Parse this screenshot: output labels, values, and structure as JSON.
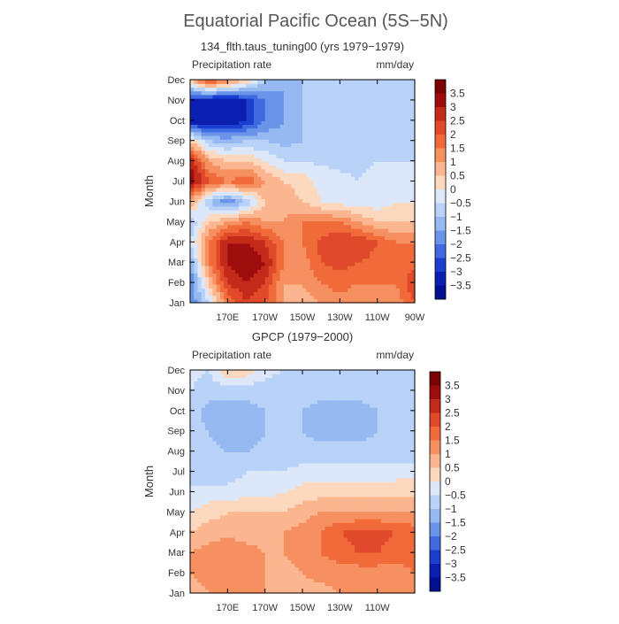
{
  "figure": {
    "title": "Equatorial Pacific Ocean (5S−5N)"
  },
  "chart_data": [
    {
      "type": "heatmap",
      "subtitle": "134_flth.taus_tuning00 (yrs 1979−1979)",
      "variable_label": "Precipitation rate",
      "units_label": "mm/day",
      "ylabel": "Month",
      "xlabel": "",
      "x_range_deg_east": [
        150,
        270
      ],
      "x_ticks": [
        {
          "lon": 170,
          "label": "170E"
        },
        {
          "lon": 190,
          "label": "170W"
        },
        {
          "lon": 210,
          "label": "150W"
        },
        {
          "lon": 230,
          "label": "130W"
        },
        {
          "lon": 250,
          "label": "110W"
        },
        {
          "lon": 270,
          "label": "90W"
        }
      ],
      "months": [
        "Jan",
        "Feb",
        "Mar",
        "Apr",
        "May",
        "Jun",
        "Jul",
        "Aug",
        "Sep",
        "Oct",
        "Nov",
        "Dec"
      ],
      "lons": [
        150,
        160,
        170,
        180,
        190,
        200,
        210,
        220,
        230,
        240,
        250,
        260,
        270
      ],
      "values": [
        [
          -2.0,
          -0.5,
          1.5,
          2.5,
          2.0,
          1.0,
          0.8,
          1.0,
          1.2,
          1.0,
          1.0,
          1.2,
          2.0
        ],
        [
          -2.0,
          0.5,
          2.5,
          3.0,
          2.5,
          1.0,
          1.0,
          1.5,
          1.8,
          1.5,
          1.5,
          1.5,
          2.5
        ],
        [
          -1.5,
          1.5,
          3.0,
          3.5,
          3.0,
          1.5,
          1.2,
          2.0,
          2.2,
          2.0,
          1.8,
          1.5,
          1.8
        ],
        [
          -0.5,
          1.5,
          3.0,
          3.0,
          2.5,
          1.5,
          1.5,
          2.2,
          2.5,
          2.5,
          2.0,
          1.5,
          1.5
        ],
        [
          -1.0,
          0.5,
          1.0,
          1.5,
          1.0,
          1.0,
          1.5,
          1.5,
          1.5,
          1.0,
          0.5,
          0.5,
          0.5
        ],
        [
          1.0,
          -1.0,
          -2.0,
          -1.0,
          0.5,
          0.8,
          0.5,
          0.0,
          -0.2,
          -0.3,
          -0.3,
          0.0,
          0.0
        ],
        [
          3.5,
          2.0,
          1.5,
          2.0,
          1.0,
          0.5,
          0.3,
          -0.2,
          -0.4,
          -0.5,
          -0.3,
          -0.2,
          0.0
        ],
        [
          3.0,
          1.0,
          0.5,
          0.5,
          0.0,
          -0.5,
          -0.5,
          -0.6,
          -0.6,
          -0.6,
          -0.5,
          -0.5,
          -0.5
        ],
        [
          0.5,
          -1.0,
          -1.2,
          -1.0,
          -1.0,
          -1.2,
          -1.0,
          -1.0,
          -0.8,
          -0.8,
          -0.8,
          -0.8,
          -0.8
        ],
        [
          -3.5,
          -3.5,
          -3.5,
          -3.0,
          -2.0,
          -1.5,
          -1.0,
          -1.0,
          -1.0,
          -0.8,
          -1.0,
          -0.8,
          -0.8
        ],
        [
          -3.0,
          -3.5,
          -3.5,
          -3.0,
          -2.0,
          -1.5,
          -1.0,
          -1.0,
          -1.0,
          -0.8,
          -0.8,
          -0.8,
          -0.8
        ],
        [
          0.5,
          2.5,
          1.5,
          0.5,
          -1.0,
          -1.5,
          -1.0,
          -1.0,
          -1.0,
          -1.0,
          -1.0,
          -0.8,
          -1.0
        ]
      ],
      "colorbar": {
        "labels": [
          "3.5",
          "3",
          "2.5",
          "2",
          "1.5",
          "1",
          "0.5",
          "0",
          "−0.5",
          "−1",
          "−1.5",
          "−2",
          "−2.5",
          "−3",
          "−3.5"
        ]
      }
    },
    {
      "type": "heatmap",
      "subtitle": "GPCP (1979−2000)",
      "variable_label": "Precipitation rate",
      "units_label": "mm/day",
      "ylabel": "Month",
      "xlabel": "",
      "x_range_deg_east": [
        150,
        270
      ],
      "x_ticks": [
        {
          "lon": 170,
          "label": "170E"
        },
        {
          "lon": 190,
          "label": "170W"
        },
        {
          "lon": 210,
          "label": "150W"
        },
        {
          "lon": 230,
          "label": "130W"
        },
        {
          "lon": 250,
          "label": "110W"
        }
      ],
      "months": [
        "Jan",
        "Feb",
        "Mar",
        "Apr",
        "May",
        "Jun",
        "Jul",
        "Aug",
        "Sep",
        "Oct",
        "Nov",
        "Dec"
      ],
      "lons": [
        150,
        160,
        170,
        180,
        190,
        200,
        210,
        220,
        230,
        240,
        250,
        260,
        270
      ],
      "values": [
        [
          0.8,
          1.0,
          1.2,
          1.2,
          1.0,
          0.8,
          0.8,
          0.8,
          1.0,
          1.0,
          1.0,
          1.0,
          1.2
        ],
        [
          1.0,
          1.2,
          1.5,
          1.2,
          1.0,
          0.8,
          1.0,
          1.2,
          1.2,
          1.2,
          1.2,
          1.2,
          1.5
        ],
        [
          1.0,
          1.2,
          1.5,
          1.2,
          1.0,
          1.0,
          1.2,
          1.5,
          1.8,
          2.0,
          2.0,
          1.8,
          1.8
        ],
        [
          0.5,
          0.8,
          0.8,
          0.8,
          0.8,
          1.0,
          1.2,
          1.5,
          2.0,
          2.2,
          2.2,
          2.0,
          1.8
        ],
        [
          0.0,
          0.3,
          0.5,
          0.5,
          0.5,
          0.5,
          0.8,
          1.0,
          1.0,
          1.0,
          1.0,
          1.0,
          1.0
        ],
        [
          -0.5,
          -0.3,
          -0.3,
          -0.2,
          -0.2,
          0.0,
          0.2,
          0.3,
          0.3,
          0.3,
          0.3,
          0.3,
          0.3
        ],
        [
          -0.5,
          -0.8,
          -0.8,
          -0.5,
          -0.5,
          -0.5,
          -0.3,
          -0.3,
          -0.3,
          -0.3,
          -0.3,
          -0.2,
          -0.2
        ],
        [
          -0.5,
          -0.8,
          -1.0,
          -1.0,
          -0.8,
          -0.8,
          -0.8,
          -0.8,
          -0.8,
          -0.8,
          -0.8,
          -0.8,
          -0.8
        ],
        [
          -0.8,
          -1.0,
          -1.5,
          -1.5,
          -1.0,
          -1.0,
          -1.0,
          -1.2,
          -1.2,
          -1.2,
          -1.0,
          -0.8,
          -0.8
        ],
        [
          -0.8,
          -1.2,
          -1.2,
          -1.2,
          -1.0,
          -1.0,
          -1.0,
          -1.2,
          -1.2,
          -1.2,
          -1.0,
          -0.8,
          -0.8
        ],
        [
          -0.5,
          -0.8,
          -0.8,
          -0.8,
          -0.8,
          -0.8,
          -0.8,
          -0.8,
          -0.8,
          -0.8,
          -0.8,
          -0.8,
          -0.8
        ],
        [
          -0.3,
          -0.5,
          0.5,
          0.3,
          -0.3,
          -0.5,
          -0.5,
          -0.5,
          -0.5,
          -0.5,
          -0.5,
          -0.5,
          -0.5
        ]
      ],
      "colorbar": {
        "labels": [
          "3.5",
          "3",
          "2.5",
          "2",
          "1.5",
          "1",
          "0.5",
          "0",
          "−0.5",
          "−1",
          "−1.5",
          "−2",
          "−2.5",
          "−3",
          "−3.5"
        ]
      }
    }
  ],
  "colorscale": {
    "levels_high_to_low": [
      "#7a0403",
      "#9e0d0d",
      "#c42a1a",
      "#e04a2a",
      "#f06a3a",
      "#f79060",
      "#fbb690",
      "#fcd8be",
      "#dce8fa",
      "#b9d2f7",
      "#95b9f0",
      "#6a94ea",
      "#3f6ae0",
      "#1a3fce",
      "#0a1fb0",
      "#001090"
    ]
  }
}
